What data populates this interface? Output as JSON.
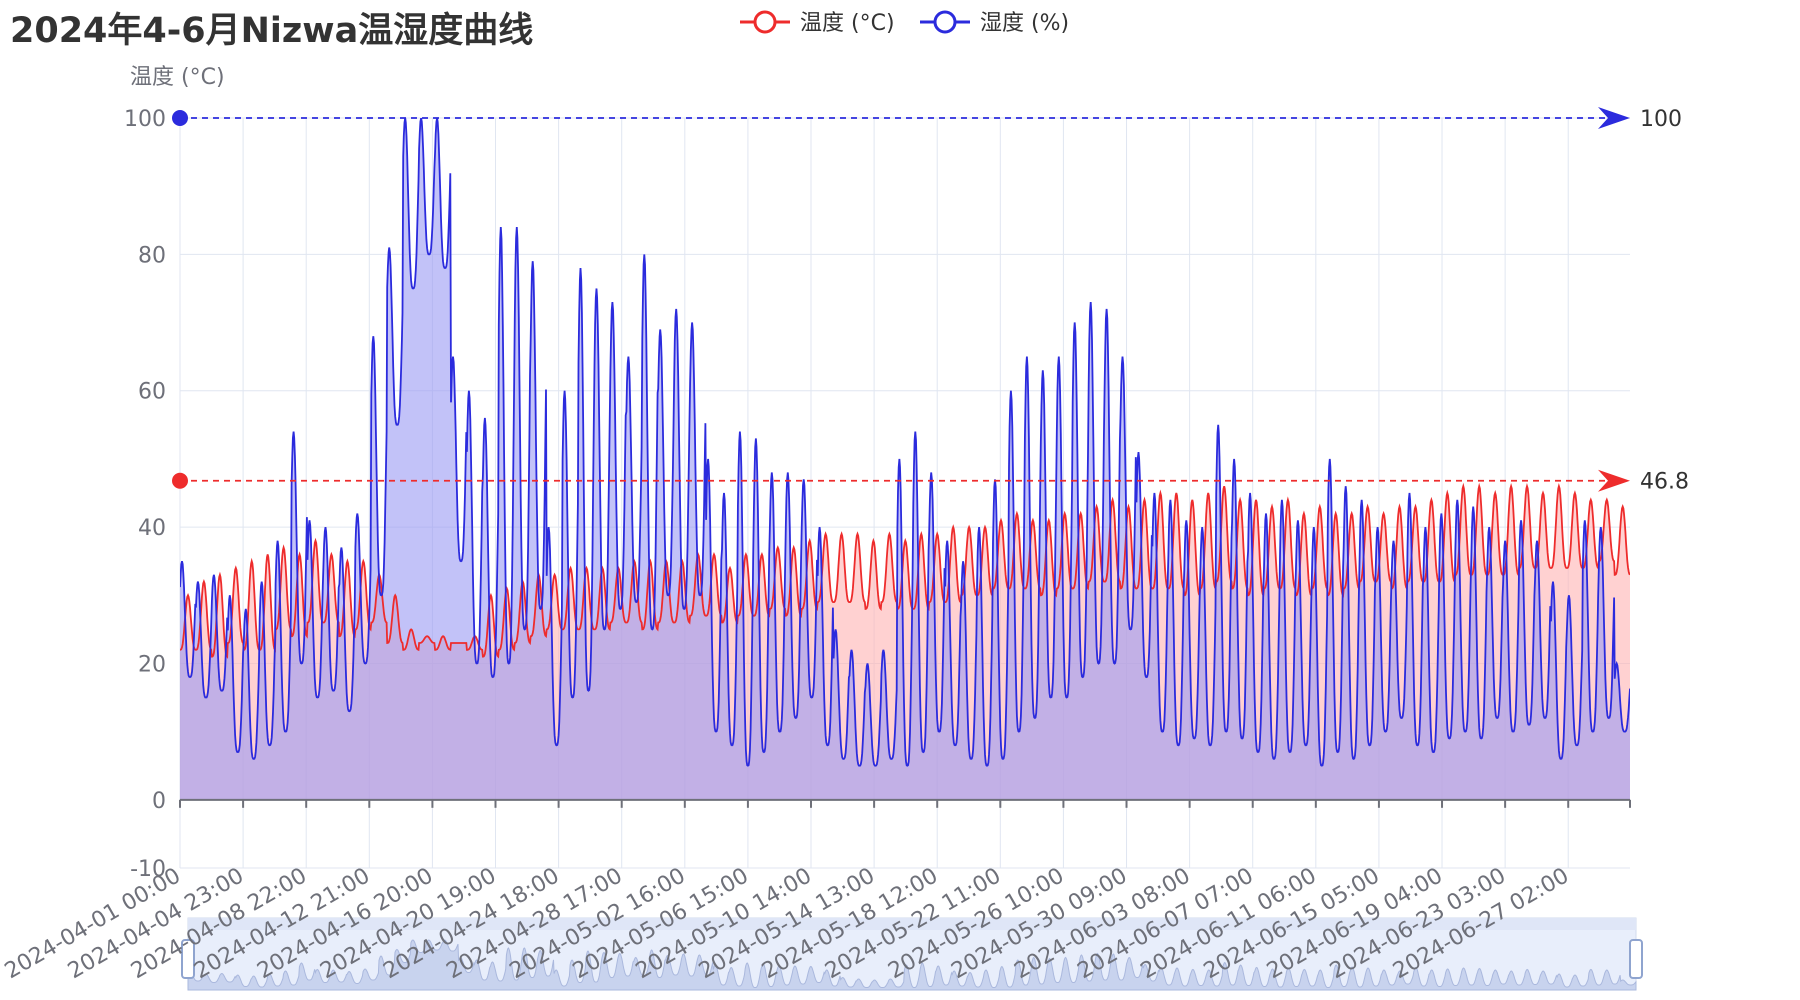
{
  "chart_data": {
    "type": "line",
    "title": "2024年4-6月Nizwa温湿度曲线",
    "ylabel": "温度 (°C)",
    "ylim": [
      -10,
      100
    ],
    "yticks": [
      -10,
      0,
      20,
      40,
      60,
      80,
      100
    ],
    "grid": true,
    "legend_position": "top",
    "x_tick_labels": [
      "2024-04-01 00:00",
      "2024-04-04 23:00",
      "2024-04-08 22:00",
      "2024-04-12 21:00",
      "2024-04-16 20:00",
      "2024-04-20 19:00",
      "2024-04-24 18:00",
      "2024-04-28 17:00",
      "2024-05-02 16:00",
      "2024-05-06 15:00",
      "2024-05-10 14:00",
      "2024-05-14 13:00",
      "2024-05-18 12:00",
      "2024-05-22 11:00",
      "2024-05-26 10:00",
      "2024-05-30 09:00",
      "2024-06-03 08:00",
      "2024-06-07 07:00",
      "2024-06-11 06:00",
      "2024-06-15 05:00",
      "2024-06-19 04:00",
      "2024-06-23 03:00",
      "2024-06-27 02:00"
    ],
    "x_range": [
      "2024-04-01 00:00",
      "2024-06-30 23:00"
    ],
    "series": [
      {
        "name": "温度 (°C)",
        "color": "#ee2c2c",
        "area_color": "#ffb3b3",
        "max_markline": 46.8,
        "daily": [
          [
            22,
            30
          ],
          [
            22,
            32
          ],
          [
            21,
            33
          ],
          [
            23,
            34
          ],
          [
            22,
            35
          ],
          [
            22,
            36
          ],
          [
            25,
            37
          ],
          [
            24,
            36
          ],
          [
            26,
            38
          ],
          [
            26,
            36
          ],
          [
            24,
            35
          ],
          [
            25,
            35
          ],
          [
            26,
            33
          ],
          [
            23,
            30
          ],
          [
            22,
            25
          ],
          [
            23,
            24
          ],
          [
            22,
            24
          ],
          [
            23,
            23
          ],
          [
            22,
            24
          ],
          [
            21,
            30
          ],
          [
            22,
            31
          ],
          [
            23,
            32
          ],
          [
            24,
            33
          ],
          [
            25,
            33
          ],
          [
            25,
            34
          ],
          [
            25,
            34
          ],
          [
            25,
            34
          ],
          [
            26,
            34
          ],
          [
            26,
            35
          ],
          [
            25,
            35
          ],
          [
            26,
            35
          ],
          [
            26,
            35
          ],
          [
            27,
            36
          ],
          [
            27,
            36
          ],
          [
            26,
            34
          ],
          [
            27,
            36
          ],
          [
            27,
            36
          ],
          [
            28,
            37
          ],
          [
            27,
            37
          ],
          [
            28,
            38
          ],
          [
            29,
            39
          ],
          [
            29,
            39
          ],
          [
            29,
            39
          ],
          [
            28,
            38
          ],
          [
            29,
            39
          ],
          [
            28,
            38
          ],
          [
            28,
            39
          ],
          [
            29,
            39
          ],
          [
            29,
            40
          ],
          [
            30,
            40
          ],
          [
            30,
            40
          ],
          [
            31,
            41
          ],
          [
            31,
            42
          ],
          [
            31,
            41
          ],
          [
            30,
            41
          ],
          [
            31,
            42
          ],
          [
            31,
            42
          ],
          [
            32,
            43
          ],
          [
            32,
            44
          ],
          [
            31,
            43
          ],
          [
            31,
            44
          ],
          [
            31,
            45
          ],
          [
            31,
            45
          ],
          [
            30,
            44
          ],
          [
            31,
            45
          ],
          [
            32,
            46
          ],
          [
            31,
            44
          ],
          [
            30,
            44
          ],
          [
            31,
            43
          ],
          [
            31,
            44
          ],
          [
            30,
            42
          ],
          [
            31,
            43
          ],
          [
            30,
            42
          ],
          [
            31,
            42
          ],
          [
            32,
            43
          ],
          [
            32,
            42
          ],
          [
            31,
            43
          ],
          [
            32,
            43
          ],
          [
            32,
            44
          ],
          [
            32,
            45
          ],
          [
            33,
            46
          ],
          [
            33,
            46
          ],
          [
            33,
            45
          ],
          [
            33,
            46
          ],
          [
            34,
            46
          ],
          [
            34,
            45
          ],
          [
            34,
            46
          ],
          [
            34,
            45
          ],
          [
            34,
            44
          ],
          [
            35,
            44
          ],
          [
            33,
            43
          ]
        ]
      },
      {
        "name": "湿度 (%)",
        "color": "#2b2bdd",
        "area_color": "#9a9af4",
        "max_markline": 100,
        "daily": [
          [
            18,
            35
          ],
          [
            15,
            32
          ],
          [
            16,
            33
          ],
          [
            7,
            30
          ],
          [
            6,
            28
          ],
          [
            8,
            32
          ],
          [
            10,
            38
          ],
          [
            20,
            54
          ],
          [
            15,
            41
          ],
          [
            16,
            40
          ],
          [
            13,
            37
          ],
          [
            20,
            42
          ],
          [
            30,
            68
          ],
          [
            55,
            81
          ],
          [
            75,
            100
          ],
          [
            80,
            100
          ],
          [
            78,
            100
          ],
          [
            35,
            65
          ],
          [
            20,
            60
          ],
          [
            18,
            56
          ],
          [
            20,
            84
          ],
          [
            25,
            84
          ],
          [
            28,
            79
          ],
          [
            8,
            40
          ],
          [
            15,
            60
          ],
          [
            16,
            78
          ],
          [
            25,
            75
          ],
          [
            28,
            73
          ],
          [
            29,
            65
          ],
          [
            25,
            80
          ],
          [
            30,
            69
          ],
          [
            28,
            72
          ],
          [
            30,
            70
          ],
          [
            10,
            50
          ],
          [
            8,
            45
          ],
          [
            5,
            54
          ],
          [
            7,
            53
          ],
          [
            10,
            48
          ],
          [
            12,
            48
          ],
          [
            15,
            47
          ],
          [
            8,
            40
          ],
          [
            6,
            25
          ],
          [
            5,
            22
          ],
          [
            5,
            20
          ],
          [
            6,
            22
          ],
          [
            5,
            50
          ],
          [
            7,
            54
          ],
          [
            10,
            48
          ],
          [
            8,
            38
          ],
          [
            6,
            35
          ],
          [
            5,
            40
          ],
          [
            6,
            47
          ],
          [
            10,
            60
          ],
          [
            12,
            65
          ],
          [
            15,
            63
          ],
          [
            15,
            65
          ],
          [
            18,
            70
          ],
          [
            20,
            73
          ],
          [
            20,
            72
          ],
          [
            25,
            65
          ],
          [
            18,
            51
          ],
          [
            10,
            45
          ],
          [
            8,
            44
          ],
          [
            9,
            41
          ],
          [
            8,
            40
          ],
          [
            10,
            55
          ],
          [
            9,
            50
          ],
          [
            7,
            45
          ],
          [
            6,
            42
          ],
          [
            7,
            44
          ],
          [
            8,
            41
          ],
          [
            5,
            40
          ],
          [
            7,
            50
          ],
          [
            6,
            46
          ],
          [
            8,
            44
          ],
          [
            10,
            40
          ],
          [
            12,
            38
          ],
          [
            8,
            45
          ],
          [
            7,
            40
          ],
          [
            9,
            42
          ],
          [
            10,
            44
          ],
          [
            9,
            43
          ],
          [
            12,
            40
          ],
          [
            10,
            38
          ],
          [
            11,
            41
          ],
          [
            12,
            38
          ],
          [
            6,
            32
          ],
          [
            8,
            30
          ],
          [
            10,
            41
          ],
          [
            12,
            40
          ],
          [
            10,
            20
          ]
        ]
      }
    ]
  },
  "markline_labels": {
    "temp_max": "46.8",
    "humidity_max": "100"
  }
}
